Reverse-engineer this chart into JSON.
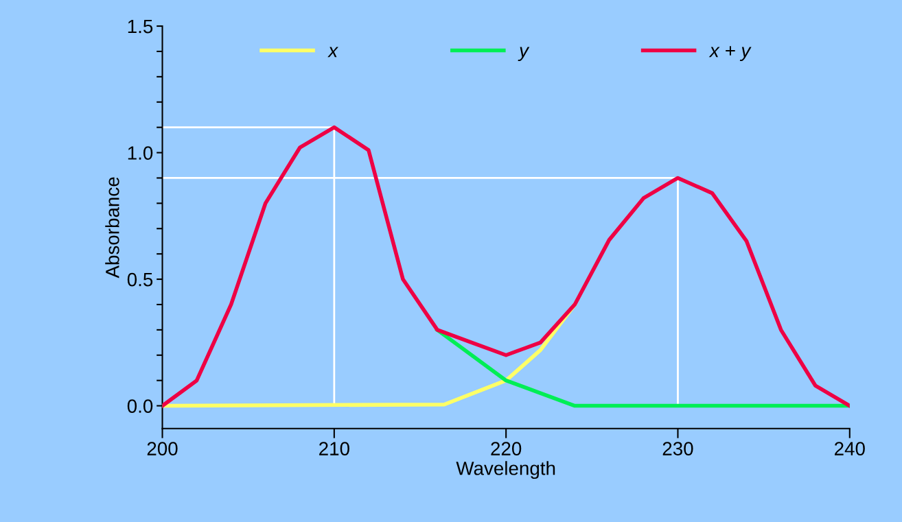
{
  "chart_data": {
    "type": "line",
    "xlabel": "Wavelength",
    "ylabel": "Absorbance",
    "xlim": [
      200,
      240
    ],
    "xticks": [
      200,
      210,
      220,
      230,
      240
    ],
    "ylim": [
      -0.09,
      1.5
    ],
    "yticks": [
      {
        "value": 0,
        "label": "0.0"
      },
      {
        "value": 0.1,
        "label": null
      },
      {
        "value": 0.2,
        "label": null
      },
      {
        "value": 0.3,
        "label": null
      },
      {
        "value": 0.4,
        "label": null
      },
      {
        "value": 0.5,
        "label": "0.5"
      },
      {
        "value": 0.6,
        "label": null
      },
      {
        "value": 0.7,
        "label": null
      },
      {
        "value": 0.8,
        "label": null
      },
      {
        "value": 0.9,
        "label": null
      },
      {
        "value": 1.0,
        "label": "1.0"
      },
      {
        "value": 1.1,
        "label": null
      },
      {
        "value": 1.2,
        "label": null
      },
      {
        "value": 1.3,
        "label": null
      },
      {
        "value": 1.4,
        "label": null
      },
      {
        "value": 1.5,
        "label": "1.5"
      }
    ],
    "grid": false,
    "legend": "top",
    "marker": "none",
    "line_style": "solid",
    "series": [
      {
        "color": "#ffffff",
        "x": [
          200,
          210,
          210
        ],
        "values": [
          1.1,
          1.1,
          0
        ]
      },
      {
        "color": "#ffffff",
        "x": [
          200,
          230,
          230
        ],
        "values": [
          0.9,
          0.9,
          0
        ]
      },
      {
        "name": "x",
        "color": "#ffff66",
        "x": [
          200,
          216.4,
          220,
          222,
          224
        ],
        "values": [
          0,
          0.005,
          0.1,
          0.22,
          0.4
        ]
      },
      {
        "name": "y",
        "color": "#00ee55",
        "x": [
          216,
          220,
          222,
          224,
          240
        ],
        "values": [
          0.3,
          0.1,
          0.05,
          0.0,
          0.0
        ]
      },
      {
        "name": "x + y",
        "color": "#ee0044",
        "x": [
          200,
          202,
          204,
          206,
          208,
          210,
          212,
          214,
          216,
          218,
          220,
          222,
          224,
          226,
          228,
          230,
          232,
          234,
          236,
          238,
          240
        ],
        "values": [
          0,
          0.1,
          0.4,
          0.8,
          1.02,
          1.1,
          1.01,
          0.5,
          0.3,
          0.25,
          0.2,
          0.25,
          0.4,
          0.655,
          0.82,
          0.9,
          0.84,
          0.65,
          0.3,
          0.08,
          0
        ]
      }
    ]
  }
}
